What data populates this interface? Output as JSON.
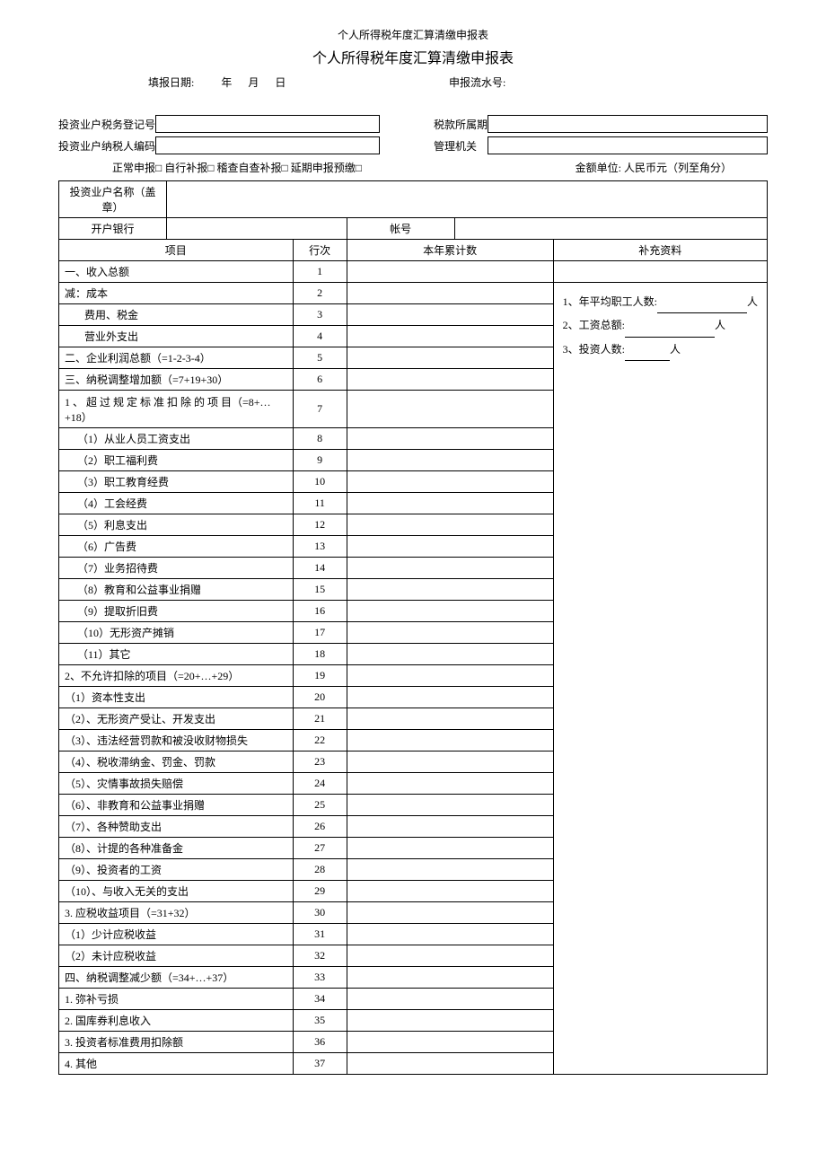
{
  "header": {
    "small_title": "个人所得税年度汇算清缴申报表",
    "main_title": "个人所得税年度汇算清缴申报表",
    "date_label": "填报日期:",
    "year": "年",
    "month": "月",
    "day": "日",
    "serial_label": "申报流水号:"
  },
  "info": {
    "tax_reg_label": "投资业户税务登记号",
    "taxpayer_code_label": "投资业户纳税人编码",
    "tax_period_label": "税款所属期",
    "admin_label": "管理机关"
  },
  "checkboxes": {
    "text": "正常申报□  自行补报□  稽查自查补报□  延期申报预缴□",
    "unit": "金额单位: 人民币元（列至角分）"
  },
  "table_header": {
    "name_label": "投资业户名称（盖章）",
    "bank_label": "开户银行",
    "account_label": "帐号",
    "item": "项目",
    "row": "行次",
    "year_total": "本年累计数",
    "supplement": "补充资料"
  },
  "supplement": {
    "line1_prefix": "1、年平均职工人数:",
    "line1_suffix": "人",
    "line2_prefix": "2、工资总额:",
    "line2_suffix": "人",
    "line3_prefix": "3、投资人数:",
    "line3_suffix": "人"
  },
  "rows": [
    {
      "item": "一、收入总额",
      "row": "1",
      "indent": 0
    },
    {
      "item": "减：成本",
      "row": "2",
      "indent": 0
    },
    {
      "item": "费用、税金",
      "row": "3",
      "indent": 2
    },
    {
      "item": "营业外支出",
      "row": "4",
      "indent": 2
    },
    {
      "item": "二、企业利润总额（=1-2-3-4）",
      "row": "5",
      "indent": 0
    },
    {
      "item": "三、纳税调整增加额（=7+19+30）",
      "row": "6",
      "indent": 0
    },
    {
      "item": "1 、 超 过 规 定 标 准 扣 除 的 项 目（=8+…+18）",
      "row": "7",
      "indent": 0,
      "tall": true
    },
    {
      "item": "（1）从业人员工资支出",
      "row": "8",
      "indent": 1
    },
    {
      "item": "（2）职工福利费",
      "row": "9",
      "indent": 1
    },
    {
      "item": "（3）职工教育经费",
      "row": "10",
      "indent": 1
    },
    {
      "item": "（4）工会经费",
      "row": "11",
      "indent": 1
    },
    {
      "item": "（5）利息支出",
      "row": "12",
      "indent": 1
    },
    {
      "item": "（6）广告费",
      "row": "13",
      "indent": 1
    },
    {
      "item": "（7）业务招待费",
      "row": "14",
      "indent": 1
    },
    {
      "item": "（8）教育和公益事业捐赠",
      "row": "15",
      "indent": 1
    },
    {
      "item": "（9）提取折旧费",
      "row": "16",
      "indent": 1
    },
    {
      "item": "（10）无形资产摊销",
      "row": "17",
      "indent": 1
    },
    {
      "item": "（11）其它",
      "row": "18",
      "indent": 1
    },
    {
      "item": "2、不允许扣除的项目（=20+…+29）",
      "row": "19",
      "indent": 0
    },
    {
      "item": "（1）资本性支出",
      "row": "20",
      "indent": 0
    },
    {
      "item": "（2）、无形资产受让、开发支出",
      "row": "21",
      "indent": 0
    },
    {
      "item": "（3）、违法经营罚款和被没收财物损失",
      "row": "22",
      "indent": 0
    },
    {
      "item": "（4）、税收滞纳金、罚金、罚款",
      "row": "23",
      "indent": 0
    },
    {
      "item": "（5）、灾情事故损失赔偿",
      "row": "24",
      "indent": 0
    },
    {
      "item": "（6）、非教育和公益事业捐赠",
      "row": "25",
      "indent": 0
    },
    {
      "item": "（7）、各种赞助支出",
      "row": "26",
      "indent": 0
    },
    {
      "item": "（8）、计提的各种准备金",
      "row": "27",
      "indent": 0
    },
    {
      "item": "（9）、投资者的工资",
      "row": "28",
      "indent": 0
    },
    {
      "item": "（10）、与收入无关的支出",
      "row": "29",
      "indent": 0
    },
    {
      "item": "3. 应税收益项目（=31+32）",
      "row": "30",
      "indent": 0
    },
    {
      "item": "（1）少计应税收益",
      "row": "31",
      "indent": 0
    },
    {
      "item": "（2）未计应税收益",
      "row": "32",
      "indent": 0
    },
    {
      "item": "四、纳税调整减少额（=34+…+37）",
      "row": "33",
      "indent": 0
    },
    {
      "item": "1. 弥补亏损",
      "row": "34",
      "indent": 0
    },
    {
      "item": "2. 国库券利息收入",
      "row": "35",
      "indent": 0
    },
    {
      "item": "3. 投资者标准费用扣除额",
      "row": "36",
      "indent": 0
    },
    {
      "item": "4. 其他",
      "row": "37",
      "indent": 0
    }
  ]
}
